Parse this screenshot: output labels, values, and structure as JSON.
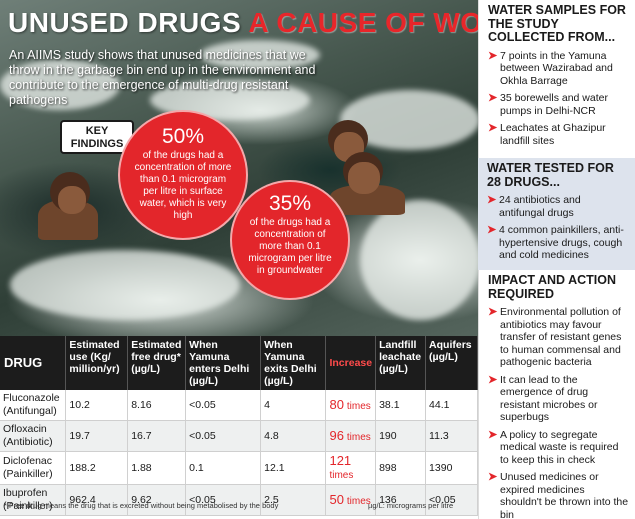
{
  "header": {
    "title_white": "UNUSED DRUGS",
    "title_red": "A CAUSE OF WORRY",
    "intro": "An AIIMS study shows that unused medicines that we throw in the garbage bin end up in the environment and contribute to the emergence of multi-drug resistant pathogens"
  },
  "findings": {
    "badge_line1": "KEY",
    "badge_line2": "FINDINGS",
    "stat1_pct": "50%",
    "stat1_desc": "of the drugs had a concentration of more than 0.1 microgram per litre in surface water, which is very high",
    "stat2_pct": "35%",
    "stat2_desc": "of the drugs had a concentration of more than 0.1 microgram per litre in groundwater"
  },
  "table": {
    "headers": {
      "drug": "DRUG",
      "use": "Estimated use (Kg/ million/yr)",
      "free": "Estimated free drug* (µg/L)",
      "enters": "When Yamuna enters Delhi (µg/L)",
      "exits": "When Yamuna exits Delhi (µg/L)",
      "increase": "Increase",
      "landfill": "Landfill leachate (µg/L)",
      "aquifers": "Aquifers (µg/L)"
    },
    "times_label": "times",
    "rows": [
      {
        "drug": "Fluconazole",
        "type": "(Antifungal)",
        "use": "10.2",
        "free": "8.16",
        "enters": "<0.05",
        "exits": "4",
        "increase": "80",
        "landfill": "38.1",
        "aquifers": "44.1"
      },
      {
        "drug": "Ofloxacin",
        "type": "(Antibiotic)",
        "use": "19.7",
        "free": "16.7",
        "enters": "<0.05",
        "exits": "4.8",
        "increase": "96",
        "landfill": "190",
        "aquifers": "11.3"
      },
      {
        "drug": "Diclofenac",
        "type": "(Painkiller)",
        "use": "188.2",
        "free": "1.88",
        "enters": "0.1",
        "exits": "12.1",
        "increase": "121",
        "landfill": "898",
        "aquifers": "1390"
      },
      {
        "drug": "Ibuprofen",
        "type": "(Painkiller)",
        "use": "962.4",
        "free": "9.62",
        "enters": "<0.05",
        "exits": "2.5",
        "increase": "50",
        "landfill": "136",
        "aquifers": "<0.05"
      }
    ],
    "footnote": "* Free drug means the drug that is excreted without being metabolised by the body",
    "units_note": "µg/L: micrograms per litre"
  },
  "sidebar": {
    "samples_title": "WATER SAMPLES FOR THE STUDY COLLECTED FROM...",
    "samples": [
      "7 points in the Yamuna between Wazirabad and Okhla Barrage",
      "35 borewells and water pumps in Delhi-NCR",
      "Leachates at Ghazipur landfill sites"
    ],
    "tested_title": "WATER TESTED FOR 28 DRUGS...",
    "tested": [
      "24 antibiotics and antifungal drugs",
      "4 common painkillers, anti-hypertensive drugs, cough and cold medicines"
    ],
    "impact_title": "IMPACT AND ACTION REQUIRED",
    "impact": [
      "Environmental pollution of antibiotics may favour transfer of resistant genes to human commensal and pathogenic bacteria",
      "It can lead to the emergence of drug resistant microbes or superbugs",
      "A policy to segregate medical waste is required to keep this in check",
      "Unused medicines or expired medicines shouldn't be thrown into the bin"
    ]
  },
  "colors": {
    "accent_red": "#e3262b",
    "table_header_bg": "#1c1c1c",
    "sidebar_highlight_bg": "#dde3ed"
  }
}
